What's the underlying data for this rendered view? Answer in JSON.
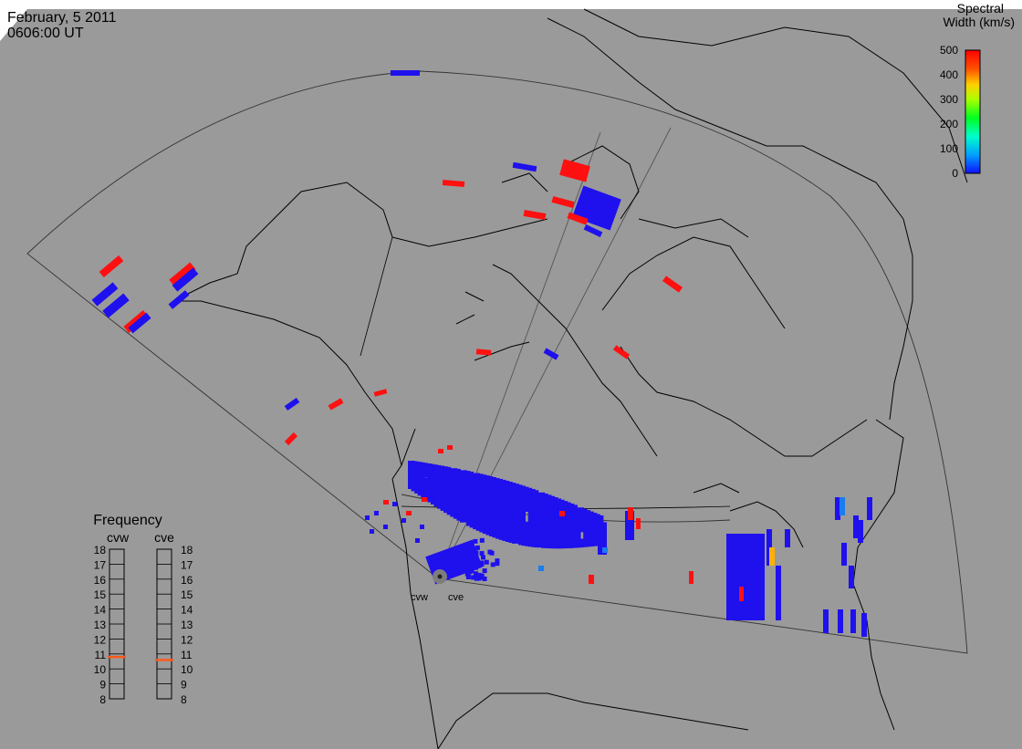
{
  "header": {
    "date": "February, 5 2011",
    "time": "0606:00 UT"
  },
  "colorbar": {
    "title_line1": "Spectral",
    "title_line2": "Width (km/s)",
    "ticks": [
      "500",
      "400",
      "300",
      "200",
      "100",
      "0"
    ],
    "min": 0,
    "max": 500
  },
  "frequency_panel": {
    "title": "Frequency",
    "radars": [
      {
        "name": "cvw",
        "value": 10.8
      },
      {
        "name": "cve",
        "value": 10.6
      }
    ],
    "ticks": [
      "18",
      "17",
      "16",
      "15",
      "14",
      "13",
      "12",
      "11",
      "10",
      "9",
      "8"
    ],
    "min": 8,
    "max": 18
  },
  "radar_sites": [
    {
      "name": "cvw"
    },
    {
      "name": "cve"
    }
  ],
  "colors": {
    "background": "#9a9a9a",
    "low_width": "#1f10ee",
    "high_width": "#ff1010",
    "mid_width": "#1a7cf0",
    "indicator": "#ff5a1a"
  }
}
